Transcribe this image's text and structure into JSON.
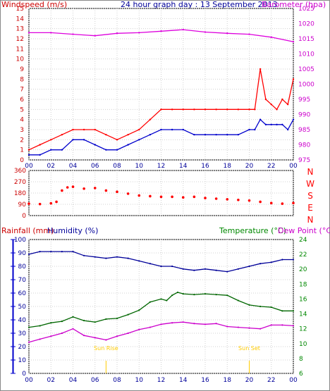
{
  "chart_data": [
    {
      "type": "line",
      "title": "24 hour graph day : 13 September 2013",
      "left_axis_label": "Windspeed (m/s)",
      "right_axis_label": "Barometer (hpa)",
      "x_ticks": [
        "00",
        "02",
        "04",
        "06",
        "08",
        "10",
        "12",
        "14",
        "16",
        "18",
        "20",
        "22",
        "00"
      ],
      "ylim_left": [
        0,
        15
      ],
      "ylim_right": [
        975,
        1025
      ],
      "y_ticks_left": [
        "0",
        "1",
        "2",
        "3",
        "4",
        "5",
        "6",
        "7",
        "8",
        "9",
        "10",
        "11",
        "12",
        "13",
        "14",
        "15"
      ],
      "y_ticks_right": [
        "975",
        "980",
        "985",
        "990",
        "995",
        "1000",
        "1005",
        "1010",
        "1015",
        "1020",
        "1025"
      ],
      "colors": {
        "gust": "#ff0000",
        "speed": "#0000cc",
        "barometer": "#dd00dd",
        "frame": "#000000"
      },
      "series": [
        {
          "key": "barometer",
          "axis": "right",
          "x": [
            0,
            2,
            4,
            6,
            8,
            10,
            12,
            14,
            16,
            18,
            20,
            22,
            24
          ],
          "y": [
            1017,
            1017,
            1016.5,
            1016,
            1016.8,
            1017,
            1017.5,
            1018,
            1017.2,
            1016.8,
            1016.5,
            1015.5,
            1014
          ]
        },
        {
          "key": "gust",
          "axis": "left",
          "x": [
            0,
            1,
            2,
            3,
            4,
            5,
            6,
            7,
            8,
            9,
            10,
            11,
            12,
            13,
            14,
            15,
            16,
            17,
            18,
            19,
            20,
            20.5,
            21,
            21.5,
            22,
            22.5,
            23,
            23.5,
            24
          ],
          "y": [
            1,
            1.5,
            2,
            2.5,
            3,
            3,
            3,
            2.5,
            2,
            2.5,
            3,
            4,
            5,
            5,
            5,
            5,
            5,
            5,
            5,
            5,
            5,
            5,
            9,
            6,
            5.5,
            5,
            6,
            5.5,
            8
          ]
        },
        {
          "key": "speed",
          "axis": "left",
          "x": [
            0,
            1,
            2,
            3,
            4,
            5,
            6,
            7,
            8,
            9,
            10,
            11,
            12,
            13,
            14,
            15,
            16,
            17,
            18,
            19,
            20,
            20.5,
            21,
            21.5,
            22,
            22.5,
            23,
            23.5,
            24
          ],
          "y": [
            0.5,
            0.5,
            1,
            1,
            2,
            2,
            1.5,
            1,
            1,
            1.5,
            2,
            2.5,
            3,
            3,
            3,
            2.5,
            2.5,
            2.5,
            2.5,
            2.5,
            3,
            3,
            4,
            3.5,
            3.5,
            3.5,
            3.5,
            3,
            4
          ]
        }
      ]
    },
    {
      "type": "scatter",
      "left_axis_label": "",
      "y_ticks": [
        "0",
        "90",
        "180",
        "270",
        "360"
      ],
      "ylim": [
        0,
        360
      ],
      "compass_labels": [
        "N",
        "W",
        "S",
        "E",
        "N"
      ],
      "colors": {
        "points": "#ff0000",
        "compass": "#ff0000"
      },
      "x": [
        0,
        1,
        2,
        2.5,
        3,
        3.5,
        4,
        5,
        6,
        7,
        8,
        9,
        10,
        11,
        12,
        13,
        14,
        15,
        16,
        17,
        18,
        19,
        20,
        21,
        22,
        23,
        24
      ],
      "y": [
        95,
        92,
        98,
        110,
        200,
        225,
        230,
        215,
        220,
        200,
        190,
        175,
        160,
        155,
        150,
        150,
        145,
        150,
        140,
        135,
        130,
        125,
        120,
        110,
        100,
        95,
        100
      ]
    },
    {
      "type": "line",
      "left_axis_label": "Rainfall (mm)",
      "left_axis_label_2": "Humidity (%)",
      "right_axis_label": "Temperature (°C)",
      "right_axis_label_2": "Dew Point (°C)",
      "x_ticks": [
        "00",
        "02",
        "04",
        "06",
        "08",
        "10",
        "12",
        "14",
        "16",
        "18",
        "20",
        "22",
        "00"
      ],
      "ylim_left": [
        0,
        100
      ],
      "ylim_right": [
        6,
        24
      ],
      "y_ticks_left": [
        "0",
        "10",
        "20",
        "30",
        "40",
        "50",
        "60",
        "70",
        "80",
        "90",
        "100"
      ],
      "y_ticks_right": [
        "6",
        "8",
        "10",
        "12",
        "14",
        "16",
        "18",
        "20",
        "22",
        "24"
      ],
      "annotations": [
        {
          "label": "Sun Rise",
          "x": 7
        },
        {
          "label": "Sun Set",
          "x": 20
        }
      ],
      "colors": {
        "humidity": "#000099",
        "temperature": "#006600",
        "dewpoint": "#cc00cc",
        "sun": "#ffcc00",
        "rainfall": "#0000cc",
        "temperature_label": "#008800",
        "dewpoint_label": "#cc00cc"
      },
      "series": [
        {
          "key": "humidity",
          "axis": "left",
          "x": [
            0,
            1,
            2,
            3,
            4,
            5,
            6,
            7,
            8,
            9,
            10,
            11,
            12,
            13,
            14,
            15,
            16,
            17,
            18,
            19,
            20,
            21,
            22,
            23,
            24
          ],
          "y": [
            89,
            91,
            91,
            91,
            91,
            88,
            87,
            86,
            87,
            86,
            84,
            82,
            80,
            80,
            78,
            77,
            78,
            77,
            76,
            78,
            80,
            82,
            83,
            85,
            85
          ]
        },
        {
          "key": "temperature",
          "axis": "right",
          "x": [
            0,
            1,
            2,
            3,
            4,
            5,
            6,
            7,
            8,
            9,
            10,
            11,
            12,
            12.5,
            13,
            13.5,
            14,
            15,
            16,
            17,
            18,
            19,
            20,
            21,
            22,
            23,
            24
          ],
          "y": [
            12.2,
            12.4,
            12.8,
            13,
            13.6,
            13.1,
            12.9,
            13.3,
            13.4,
            13.9,
            14.5,
            15.6,
            16,
            15.8,
            16.5,
            16.9,
            16.7,
            16.6,
            16.7,
            16.6,
            16.5,
            15.8,
            15.2,
            15,
            14.9,
            14.4,
            14.4
          ]
        },
        {
          "key": "dewpoint",
          "axis": "right",
          "x": [
            0,
            1,
            2,
            3,
            4,
            5,
            6,
            7,
            8,
            9,
            10,
            11,
            12,
            13,
            14,
            15,
            16,
            17,
            18,
            19,
            20,
            21,
            22,
            23,
            24
          ],
          "y": [
            10.2,
            10.6,
            11,
            11.4,
            12,
            11.1,
            10.8,
            10.5,
            11,
            11.4,
            11.9,
            12.2,
            12.6,
            12.8,
            12.9,
            12.7,
            12.6,
            12.7,
            12.3,
            12.2,
            12.1,
            12,
            12.5,
            12.5,
            12.4
          ]
        }
      ]
    }
  ]
}
